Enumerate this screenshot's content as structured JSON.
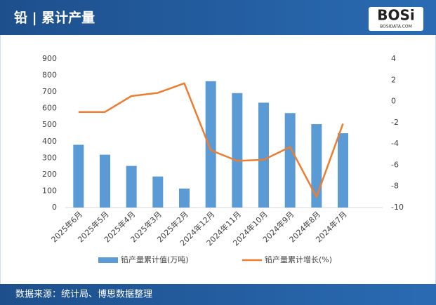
{
  "chart_data": {
    "type": "bar-line",
    "title": "铅 | 累计产量",
    "logo": "BOSi",
    "logo_sub": "BOSIDATA.COM",
    "source": "数据来源：统计局、博思数据整理",
    "categories": [
      "2025年6月",
      "2025年5月",
      "2025年4月",
      "2025年3月",
      "2025年2月",
      "2024年12月",
      "2024年11月",
      "2024年10月",
      "2024年9月",
      "2024年8月",
      "2024年7月",
      null
    ],
    "series": [
      {
        "name": "铅产量累计值(万吨)",
        "color": "#5b9bd5",
        "type": "bar",
        "values": [
          380,
          320,
          252,
          188,
          115,
          765,
          693,
          635,
          572,
          505,
          450,
          null
        ]
      },
      {
        "name": "铅产量累计增长(%)",
        "color": "#ed7d31",
        "type": "line",
        "axis": "y2",
        "values": [
          -1.0,
          -1.0,
          0.5,
          0.8,
          1.7,
          -4.6,
          -5.6,
          -5.5,
          -4.3,
          -9.0,
          -2.1,
          null
        ]
      }
    ],
    "ylim": [
      0,
      900
    ],
    "yticks": [
      0,
      100,
      200,
      300,
      400,
      500,
      600,
      700,
      800,
      900
    ],
    "y2lim": [
      -10,
      4
    ],
    "y2ticks": [
      -10,
      -8,
      -6,
      -4,
      -2,
      0,
      2,
      4
    ]
  }
}
